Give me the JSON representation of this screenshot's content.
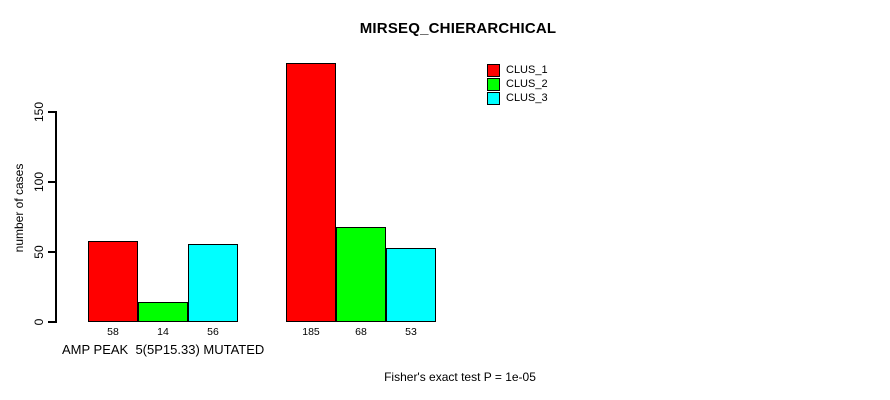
{
  "chart_data": {
    "type": "bar",
    "title": "MIRSEQ_CHIERARCHICAL",
    "xlabel": "AMP PEAK  5(5P15.33) MUTATED",
    "ylabel": "number of cases",
    "groups": [
      {
        "label": "AMP PEAK 5(5P15.33) MUTATED",
        "values": [
          58,
          14,
          56
        ]
      },
      {
        "label": "",
        "values": [
          185,
          68,
          53
        ]
      }
    ],
    "series": [
      {
        "name": "CLUS_1",
        "color": "#FF0000",
        "values": [
          58,
          185
        ]
      },
      {
        "name": "CLUS_2",
        "color": "#00FF00",
        "values": [
          14,
          68
        ]
      },
      {
        "name": "CLUS_3",
        "color": "#00FFFF",
        "values": [
          56,
          53
        ]
      }
    ],
    "bar_value_labels": [
      [
        58,
        14,
        56
      ],
      [
        185,
        68,
        53
      ]
    ],
    "yticks": [
      0,
      50,
      100,
      150
    ],
    "ylim": [
      0,
      190
    ],
    "grid": false,
    "legend_position": "top-right",
    "annotation": "Fisher's exact test P = 1e-05",
    "axis_color": "#000000",
    "background_color": "#FFFFFF"
  }
}
